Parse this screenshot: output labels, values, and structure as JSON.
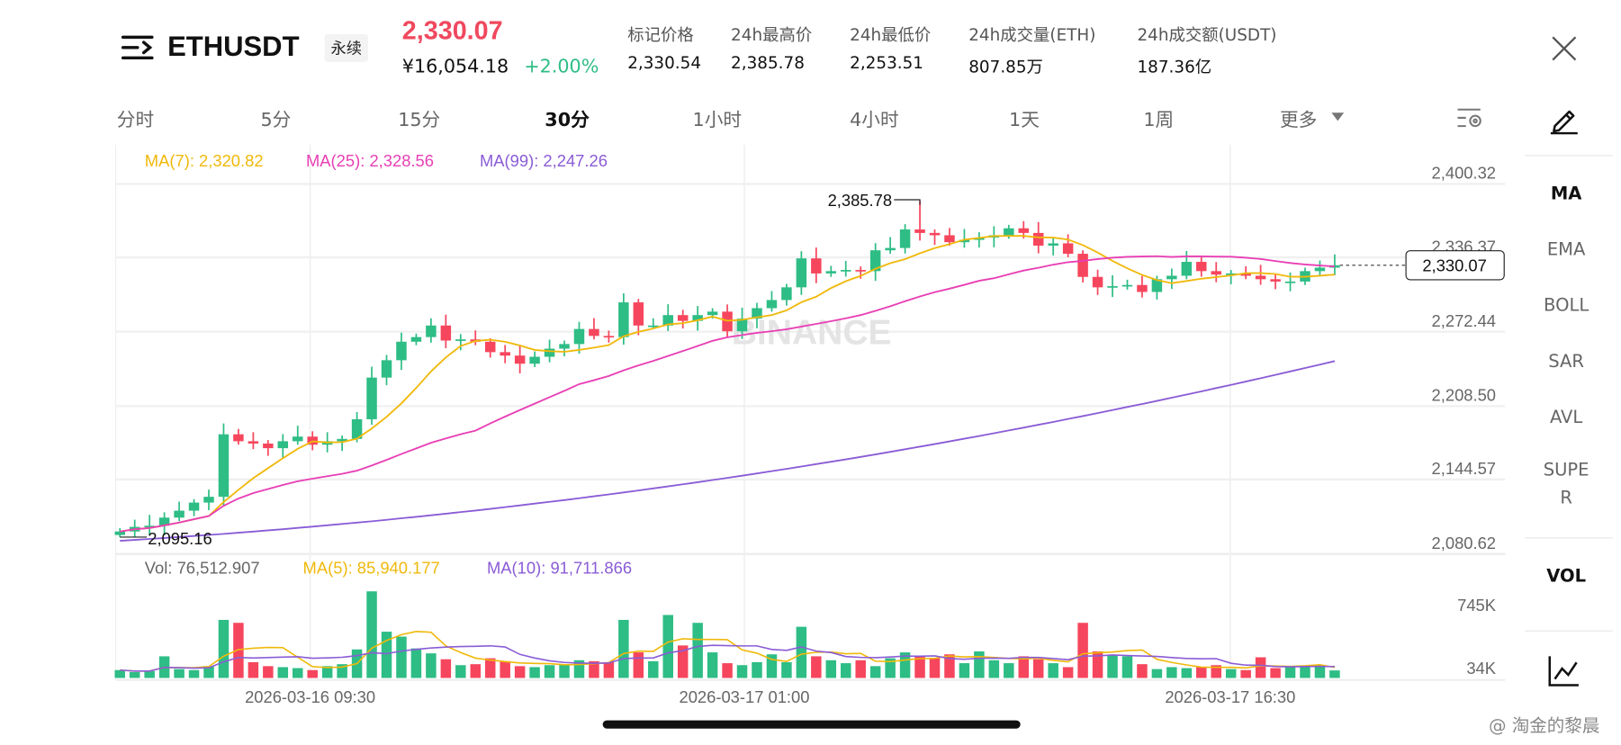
{
  "header": {
    "symbol": "ETHUSDT",
    "badge": "永续",
    "last_price": "2,330.07",
    "cny_price": "¥16,054.18",
    "change": "+2.00%",
    "stats": [
      {
        "label": "标记价格",
        "value": "2,330.54"
      },
      {
        "label": "24h最高价",
        "value": "2,385.78"
      },
      {
        "label": "24h最低价",
        "value": "2,253.51"
      },
      {
        "label": "24h成交量(ETH)",
        "value": "807.85万"
      },
      {
        "label": "24h成交额(USDT)",
        "value": "187.36亿"
      }
    ]
  },
  "tabs": [
    "分时",
    "5分",
    "15分",
    "30分",
    "1小时",
    "4小时",
    "1天",
    "1周",
    "更多"
  ],
  "active_tab": "30分",
  "sidebar": {
    "items": [
      "MA",
      "EMA",
      "BOLL",
      "SAR",
      "AVL",
      "SUPE",
      "R",
      "VOL"
    ]
  },
  "legend": {
    "ma7": "MA(7): 2,320.82",
    "ma25": "MA(25): 2,328.56",
    "ma99": "MA(99): 2,247.26",
    "vol": "Vol: 76,512.907",
    "vma5": "MA(5): 85,940.177",
    "vma10": "MA(10): 91,711.866"
  },
  "watermark": "BINANCE",
  "credit": "@ 淘金的黎晨",
  "colors": {
    "up": "#2ebd85",
    "down": "#f6465d",
    "ma7": "#f0b90b",
    "ma25": "#e83fb5",
    "ma99": "#8a5cd6"
  },
  "chart_data": {
    "type": "candlestick",
    "interval": "30m",
    "y_ticks": [
      "2,400.32",
      "2,336.37",
      "2,272.44",
      "2,208.50",
      "2,144.57",
      "2,080.62"
    ],
    "ylim": [
      2080.62,
      2400.32
    ],
    "x_ticks": [
      "2026-03-16 09:30",
      "2026-03-17 01:00",
      "2026-03-17 16:30"
    ],
    "high_mark": "2,385.78",
    "high_value": 2385.78,
    "high_index": 54,
    "low_mark": "2,095.16",
    "low_value": 2095.16,
    "low_index": 0,
    "current_price_label": "2,330.07",
    "first_open": 2097,
    "closes": [
      2100,
      2104,
      2105,
      2112,
      2118,
      2125,
      2130,
      2184,
      2178,
      2176,
      2172,
      2178,
      2182,
      2175,
      2178,
      2180,
      2197,
      2233,
      2248,
      2264,
      2268,
      2278,
      2265,
      2266,
      2264,
      2255,
      2252,
      2245,
      2251,
      2258,
      2262,
      2275,
      2269,
      2268,
      2298,
      2278,
      2278,
      2287,
      2282,
      2287,
      2290,
      2273,
      2284,
      2293,
      2300,
      2311,
      2336,
      2323,
      2325,
      2326,
      2325,
      2343,
      2345,
      2361,
      2358,
      2356,
      2350,
      2352,
      2354,
      2356,
      2362,
      2358,
      2347,
      2349,
      2340,
      2320,
      2311,
      2312,
      2313,
      2307,
      2318,
      2321,
      2333,
      2325,
      2322,
      2323,
      2321,
      2318,
      2316,
      2316,
      2325,
      2328,
      2330.07
    ],
    "ma99_range": [
      2092,
      2247.26
    ],
    "volume_ticks": [
      "745K",
      "34K"
    ],
    "volumes_k": [
      80,
      60,
      70,
      220,
      90,
      80,
      120,
      590,
      560,
      160,
      120,
      110,
      100,
      80,
      120,
      140,
      290,
      880,
      470,
      420,
      300,
      250,
      190,
      130,
      140,
      200,
      170,
      120,
      110,
      130,
      140,
      180,
      170,
      160,
      590,
      260,
      170,
      640,
      330,
      560,
      260,
      150,
      130,
      160,
      240,
      160,
      520,
      220,
      180,
      150,
      180,
      120,
      200,
      260,
      220,
      200,
      240,
      150,
      270,
      180,
      150,
      220,
      190,
      150,
      110,
      560,
      270,
      230,
      220,
      140,
      90,
      110,
      100,
      110,
      130,
      90,
      80,
      210,
      100,
      110,
      120,
      130,
      76.5
    ]
  }
}
